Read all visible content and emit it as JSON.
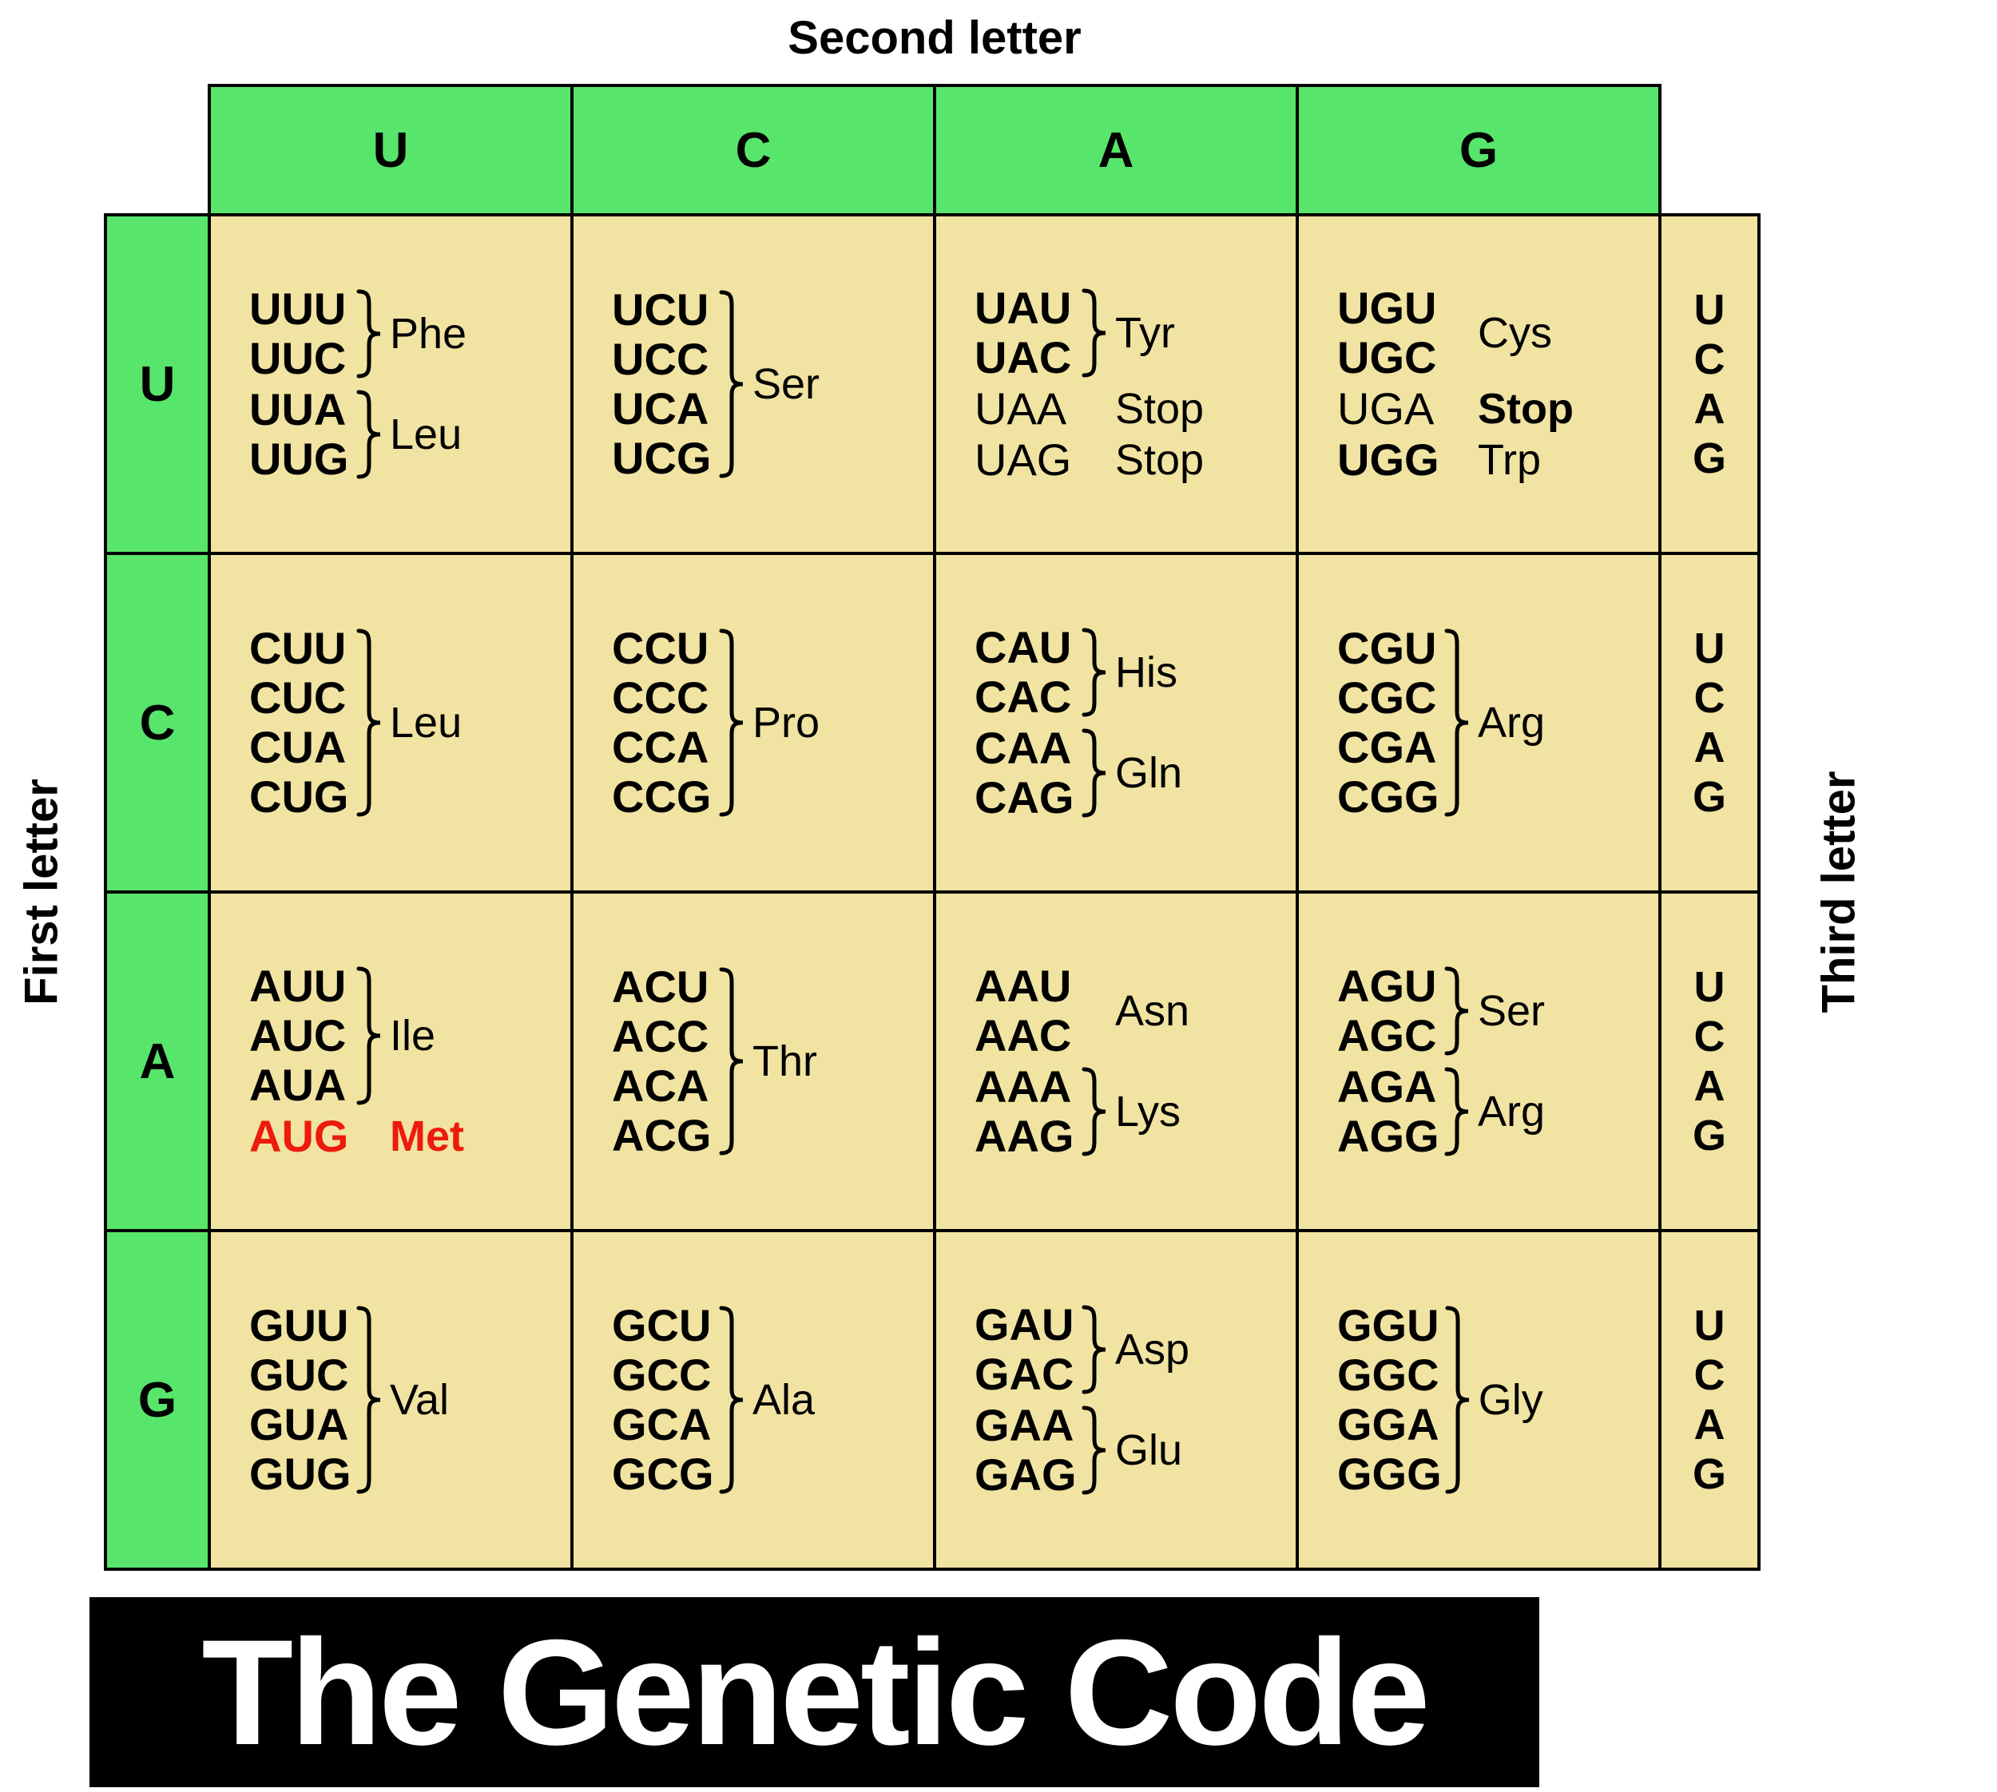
{
  "title": "The Genetic Code",
  "axis": {
    "second_letter": "Second letter",
    "first_letter": "First letter",
    "third_letter": "Third letter"
  },
  "colors": {
    "header_green": "#58e56c",
    "cell_tan": "#f1e3a2",
    "border_black": "#000000",
    "start_codon_red": "#ec1b0c",
    "title_bg": "#000000",
    "title_text": "#ffffff"
  },
  "column_headers": [
    "U",
    "C",
    "A",
    "G"
  ],
  "row_headers": [
    "U",
    "C",
    "A",
    "G"
  ],
  "third_letters": [
    "U",
    "C",
    "A",
    "G"
  ],
  "grid": {
    "rows": [
      {
        "first_letter": "U",
        "cells": [
          {
            "second_letter": "U",
            "groups": [
              {
                "codons": [
                  "UUU",
                  "UUC"
                ],
                "codon_weight": "bold",
                "brace": true,
                "label": "Phe",
                "label_weight": "regular"
              },
              {
                "codons": [
                  "UUA",
                  "UUG"
                ],
                "codon_weight": "bold",
                "brace": true,
                "label": "Leu",
                "label_weight": "regular"
              }
            ]
          },
          {
            "second_letter": "C",
            "groups": [
              {
                "codons": [
                  "UCU",
                  "UCC",
                  "UCA",
                  "UCG"
                ],
                "codon_weight": "bold",
                "brace": true,
                "label": "Ser",
                "label_weight": "regular"
              }
            ]
          },
          {
            "second_letter": "A",
            "groups": [
              {
                "codons": [
                  "UAU",
                  "UAC"
                ],
                "codon_weight": "bold",
                "brace": true,
                "label": "Tyr",
                "label_weight": "regular"
              },
              {
                "codons": [
                  "UAA"
                ],
                "codon_weight": "regular",
                "brace": false,
                "label": "Stop",
                "label_weight": "regular"
              },
              {
                "codons": [
                  "UAG"
                ],
                "codon_weight": "regular",
                "brace": false,
                "label": "Stop",
                "label_weight": "regular"
              }
            ]
          },
          {
            "second_letter": "G",
            "groups": [
              {
                "codons": [
                  "UGU",
                  "UGC"
                ],
                "codon_weight": "bold",
                "brace": false,
                "label": "Cys",
                "label_weight": "regular"
              },
              {
                "codons": [
                  "UGA"
                ],
                "codon_weight": "regular",
                "brace": false,
                "label": "Stop",
                "label_weight": "bold"
              },
              {
                "codons": [
                  "UGG"
                ],
                "codon_weight": "bold",
                "brace": false,
                "label": "Trp",
                "label_weight": "regular"
              }
            ]
          }
        ]
      },
      {
        "first_letter": "C",
        "cells": [
          {
            "second_letter": "U",
            "groups": [
              {
                "codons": [
                  "CUU",
                  "CUC",
                  "CUA",
                  "CUG"
                ],
                "codon_weight": "bold",
                "brace": true,
                "label": "Leu",
                "label_weight": "regular"
              }
            ]
          },
          {
            "second_letter": "C",
            "groups": [
              {
                "codons": [
                  "CCU",
                  "CCC",
                  "CCA",
                  "CCG"
                ],
                "codon_weight": "bold",
                "brace": true,
                "label": "Pro",
                "label_weight": "regular"
              }
            ]
          },
          {
            "second_letter": "A",
            "groups": [
              {
                "codons": [
                  "CAU",
                  "CAC"
                ],
                "codon_weight": "bold",
                "brace": true,
                "label": "His",
                "label_weight": "regular"
              },
              {
                "codons": [
                  "CAA",
                  "CAG"
                ],
                "codon_weight": "bold",
                "brace": true,
                "label": "Gln",
                "label_weight": "regular"
              }
            ]
          },
          {
            "second_letter": "G",
            "groups": [
              {
                "codons": [
                  "CGU",
                  "CGC",
                  "CGA",
                  "CGG"
                ],
                "codon_weight": "bold",
                "brace": true,
                "label": "Arg",
                "label_weight": "regular"
              }
            ]
          }
        ]
      },
      {
        "first_letter": "A",
        "cells": [
          {
            "second_letter": "U",
            "groups": [
              {
                "codons": [
                  "AUU",
                  "AUC",
                  "AUA"
                ],
                "codon_weight": "bold",
                "brace": true,
                "label": "Ile",
                "label_weight": "regular"
              },
              {
                "codons": [
                  "AUG"
                ],
                "codon_weight": "bold",
                "brace": false,
                "label": "Met",
                "label_weight": "bold",
                "highlight": "red"
              }
            ]
          },
          {
            "second_letter": "C",
            "groups": [
              {
                "codons": [
                  "ACU",
                  "ACC",
                  "ACA",
                  "ACG"
                ],
                "codon_weight": "bold",
                "brace": true,
                "label": "Thr",
                "label_weight": "regular"
              }
            ]
          },
          {
            "second_letter": "A",
            "groups": [
              {
                "codons": [
                  "AAU",
                  "AAC"
                ],
                "codon_weight": "bold",
                "brace": false,
                "label": "Asn",
                "label_weight": "regular"
              },
              {
                "codons": [
                  "AAA",
                  "AAG"
                ],
                "codon_weight": "bold",
                "brace": true,
                "label": "Lys",
                "label_weight": "regular"
              }
            ]
          },
          {
            "second_letter": "G",
            "groups": [
              {
                "codons": [
                  "AGU",
                  "AGC"
                ],
                "codon_weight": "bold",
                "brace": true,
                "label": "Ser",
                "label_weight": "regular"
              },
              {
                "codons": [
                  "AGA",
                  "AGG"
                ],
                "codon_weight": "bold",
                "brace": true,
                "label": "Arg",
                "label_weight": "regular"
              }
            ]
          }
        ]
      },
      {
        "first_letter": "G",
        "cells": [
          {
            "second_letter": "U",
            "groups": [
              {
                "codons": [
                  "GUU",
                  "GUC",
                  "GUA",
                  "GUG"
                ],
                "codon_weight": "bold",
                "brace": true,
                "label": "Val",
                "label_weight": "regular"
              }
            ]
          },
          {
            "second_letter": "C",
            "groups": [
              {
                "codons": [
                  "GCU",
                  "GCC",
                  "GCA",
                  "GCG"
                ],
                "codon_weight": "bold",
                "brace": true,
                "label": "Ala",
                "label_weight": "regular"
              }
            ]
          },
          {
            "second_letter": "A",
            "groups": [
              {
                "codons": [
                  "GAU",
                  "GAC"
                ],
                "codon_weight": "bold",
                "brace": true,
                "label": "Asp",
                "label_weight": "regular"
              },
              {
                "codons": [
                  "GAA",
                  "GAG"
                ],
                "codon_weight": "bold",
                "brace": true,
                "label": "Glu",
                "label_weight": "regular"
              }
            ]
          },
          {
            "second_letter": "G",
            "groups": [
              {
                "codons": [
                  "GGU",
                  "GGC",
                  "GGA",
                  "GGG"
                ],
                "codon_weight": "bold",
                "brace": true,
                "label": "Gly",
                "label_weight": "regular"
              }
            ]
          }
        ]
      }
    ]
  }
}
